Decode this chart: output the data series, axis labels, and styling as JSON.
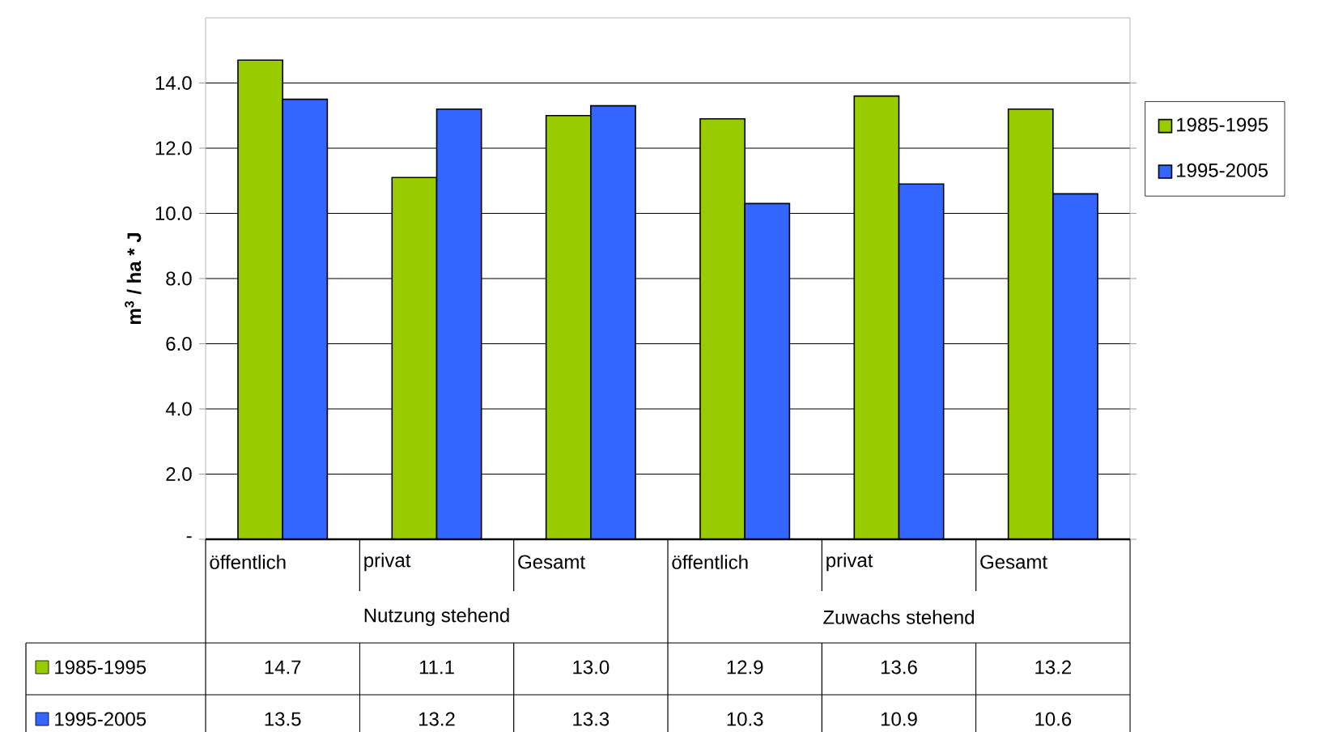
{
  "chart_data": {
    "type": "bar",
    "ylabel": "m$^{3}$ / ha * J",
    "categories": [
      "öffentlich",
      "privat",
      "Gesamt",
      "öffentlich",
      "privat",
      "Gesamt"
    ],
    "annotations": [
      "Nutzung stehend",
      "Zuwachs stehend"
    ],
    "series": [
      {
        "name": "1985-1995",
        "color": "#99cc00",
        "values": [
          14.7,
          11.1,
          13.0,
          12.9,
          13.6,
          13.2
        ],
        "value_labels": [
          "14.7",
          "11.1",
          "13.0",
          "12.9",
          "13.6",
          "13.2"
        ]
      },
      {
        "name": "1995-2005",
        "color": "#3366ff",
        "values": [
          13.5,
          13.2,
          13.3,
          10.3,
          10.9,
          10.6
        ],
        "value_labels": [
          "13.5",
          "13.2",
          "13.3",
          "10.3",
          "10.9",
          "10.6"
        ]
      }
    ],
    "ylim": [
      0,
      16
    ],
    "yticks": [
      {
        "value": 0,
        "label": "-"
      },
      {
        "value": 2,
        "label": "2.0"
      },
      {
        "value": 4,
        "label": "4.0"
      },
      {
        "value": 6,
        "label": "6.0"
      },
      {
        "value": 8,
        "label": "8.0"
      },
      {
        "value": 10,
        "label": "10.0"
      },
      {
        "value": 12,
        "label": "12.0"
      },
      {
        "value": 14,
        "label": "14.0"
      }
    ],
    "grid": "y",
    "legend": "right"
  }
}
